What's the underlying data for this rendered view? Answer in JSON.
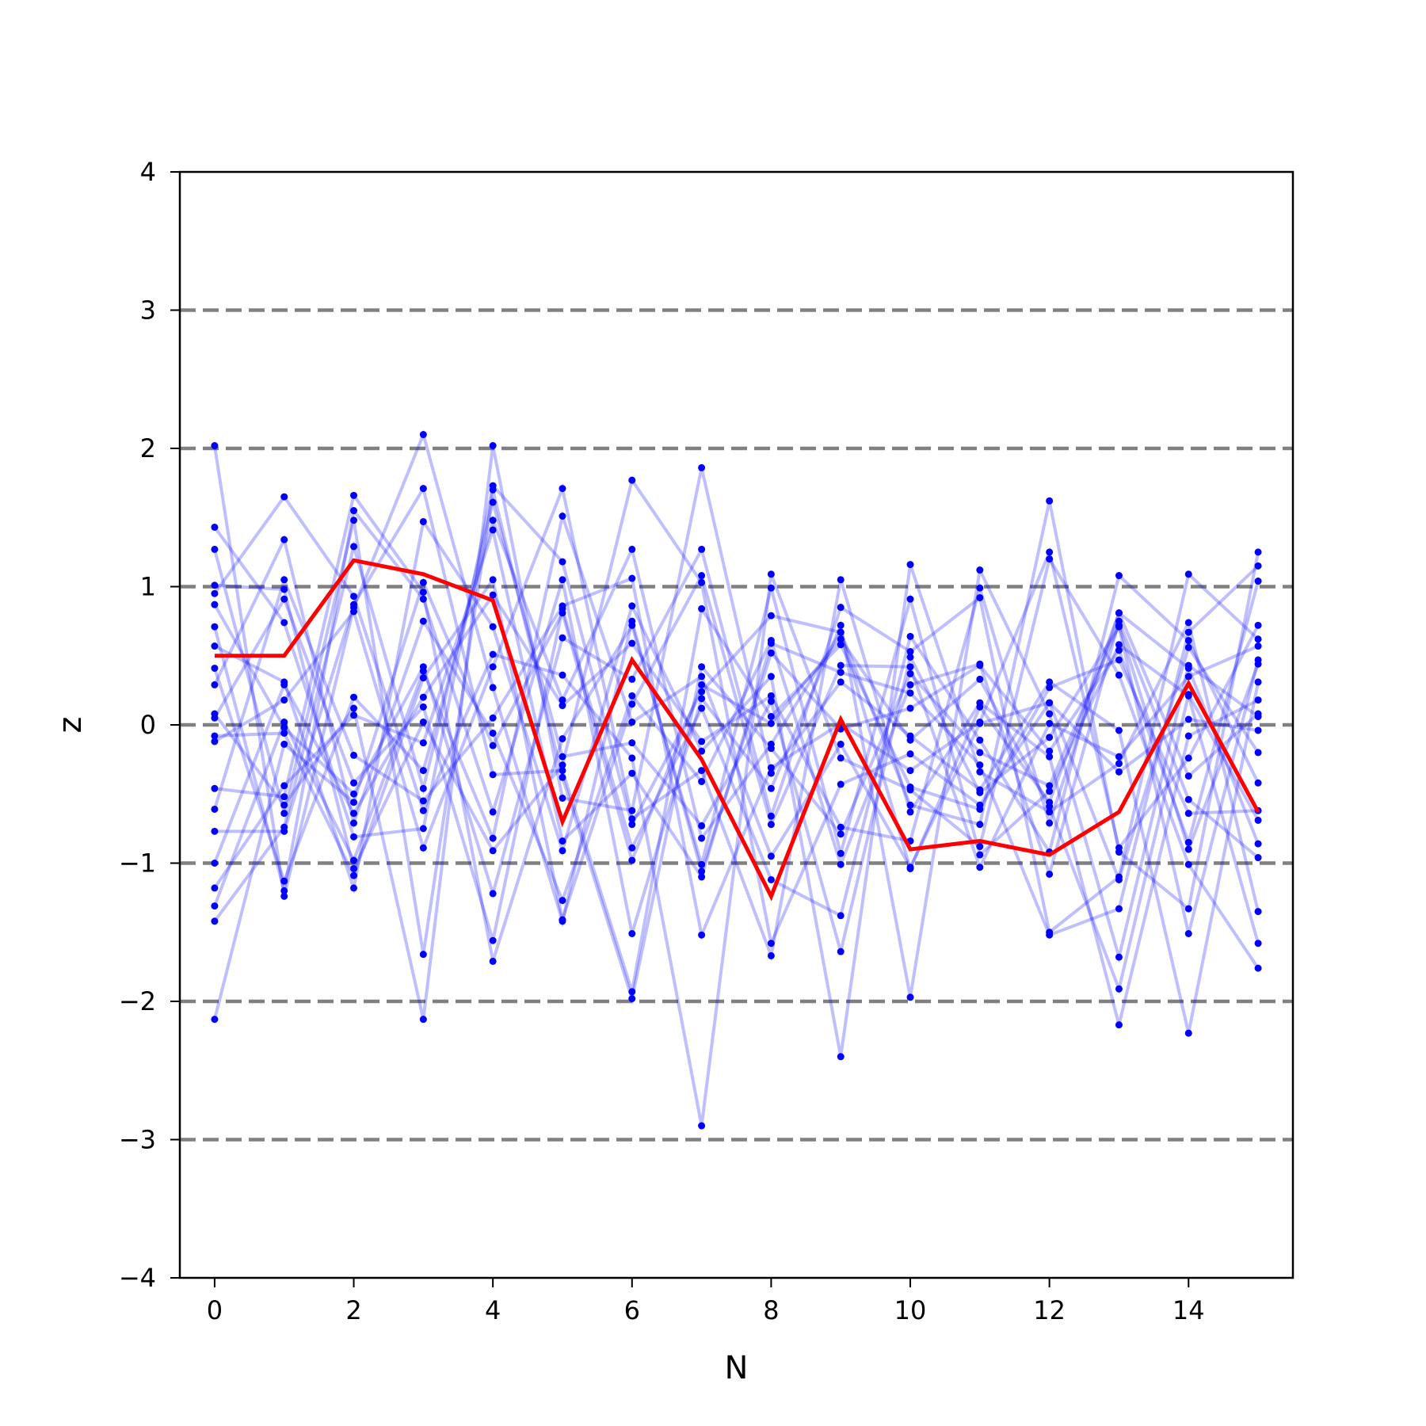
{
  "chart_data": {
    "type": "line",
    "xlabel": "N",
    "ylabel": "z",
    "xlim": [
      -0.5,
      15.5
    ],
    "ylim": [
      -4,
      4
    ],
    "x_ticks": [
      0,
      2,
      4,
      6,
      8,
      10,
      12,
      14
    ],
    "x_tick_labels": [
      "0",
      "2",
      "4",
      "6",
      "8",
      "10",
      "12",
      "14"
    ],
    "y_ticks": [
      -4,
      -3,
      -2,
      -1,
      0,
      1,
      2,
      3,
      4
    ],
    "y_tick_labels": [
      "−4",
      "−3",
      "−2",
      "−1",
      "0",
      "1",
      "2",
      "3",
      "4"
    ],
    "reference_lines": [
      -3,
      -2,
      -1,
      0,
      1,
      2,
      3
    ],
    "x": [
      0,
      1,
      2,
      3,
      4,
      5,
      6,
      7,
      8,
      9,
      10,
      11,
      12,
      13,
      14,
      15
    ],
    "highlight_series": {
      "values": [
        0.5,
        0.5,
        1.19,
        1.09,
        0.9,
        -0.7,
        0.47,
        -0.25,
        -1.24,
        0.04,
        -0.9,
        -0.84,
        -0.94,
        -0.63,
        0.3,
        -0.63
      ]
    },
    "background_series": [
      {
        "values": [
          2.02,
          -1.24,
          0.85,
          2.1,
          0.27,
          -1.42,
          0.75,
          -1.06,
          0.52,
          -0.03,
          0.12,
          0.43,
          -0.19,
          0.54,
          -0.85,
          1.04
        ]
      },
      {
        "values": [
          1.43,
          0.74,
          -0.81,
          -0.75,
          1.73,
          1.18,
          -0.72,
          0.24,
          0.79,
          0.67,
          -1.04,
          0.13,
          -0.56,
          0.81,
          0.41,
          -0.86
        ]
      },
      {
        "values": [
          1.27,
          -0.64,
          1.48,
          -1.66,
          1.7,
          -0.38,
          -1.98,
          0.42,
          -0.17,
          -0.79,
          0.37,
          -0.2,
          -0.44,
          0.72,
          -0.9,
          0.44
        ]
      },
      {
        "values": [
          1.01,
          0.98,
          -1.04,
          0.02,
          -0.91,
          -0.29,
          1.77,
          1.03,
          -1.58,
          -0.43,
          -0.21,
          -0.58,
          0.16,
          -1.12,
          0.56,
          -0.2
        ]
      },
      {
        "values": [
          0.95,
          1.65,
          0.93,
          -0.62,
          0.51,
          0.36,
          -0.24,
          -2.9,
          1.09,
          -0.24,
          -0.47,
          -0.88,
          1.2,
          0.36,
          -1.01,
          -1.76
        ]
      },
      {
        "values": [
          0.87,
          -0.02,
          -0.5,
          0.42,
          -1.22,
          0.63,
          0.33,
          1.27,
          -0.66,
          0.85,
          0.53,
          0.92,
          -1.5,
          -1.1,
          1.09,
          0.62
        ]
      },
      {
        "values": [
          0.71,
          -1.2,
          1.55,
          0.91,
          -0.63,
          1.05,
          -1.51,
          0.19,
          -0.46,
          0.72,
          -1.97,
          1.12,
          0.08,
          -1.68,
          0.43,
          0.06
        ]
      },
      {
        "values": [
          0.57,
          0.31,
          -1.18,
          1.47,
          0.71,
          -0.91,
          0.86,
          -0.19,
          0.35,
          -2.4,
          1.16,
          -0.34,
          -0.63,
          -0.28,
          0.74,
          -1.35
        ]
      },
      {
        "values": [
          0.41,
          -1.13,
          0.2,
          -0.33,
          1.48,
          0.18,
          1.27,
          -0.82,
          -0.14,
          0.67,
          -0.58,
          -0.72,
          1.62,
          -0.92,
          -1.33,
          1.25
        ]
      },
      {
        "values": [
          0.29,
          1.34,
          -0.71,
          0.75,
          -0.06,
          -1.27,
          0.21,
          -0.41,
          0.61,
          -1.01,
          0.29,
          0.44,
          -1.08,
          0.75,
          -0.54,
          -0.96
        ]
      },
      {
        "values": [
          0.08,
          -0.58,
          0.12,
          -2.13,
          2.02,
          -0.53,
          -0.62,
          1.86,
          -0.35,
          0.31,
          -0.08,
          -0.47,
          0.31,
          -0.04,
          -2.23,
          0.31
        ]
      },
      {
        "values": [
          0.05,
          0.91,
          -0.42,
          0.13,
          -1.56,
          0.84,
          -0.89,
          0.12,
          -1.12,
          -1.38,
          0.64,
          -0.11,
          -0.92,
          1.08,
          0.61,
          -0.42
        ]
      },
      {
        "values": [
          -0.08,
          -0.06,
          -1.09,
          0.34,
          1.05,
          -1.41,
          0.15,
          1.08,
          -0.72,
          0.43,
          0.42,
          -1.03,
          0.01,
          -0.23,
          0.35,
          0.57
        ]
      },
      {
        "values": [
          -0.12,
          0.18,
          0.82,
          -0.89,
          0.42,
          1.71,
          -0.68,
          -0.33,
          -1.67,
          1.05,
          -0.63,
          0.16,
          -0.23,
          -2.17,
          -0.08,
          0.18
        ]
      },
      {
        "values": [
          -0.46,
          -0.52,
          1.66,
          0.96,
          -1.71,
          -0.1,
          0.72,
          -1.01,
          0.99,
          -0.93,
          0.91,
          -0.94,
          -0.48,
          0.58,
          0.21,
          -1.58
        ]
      },
      {
        "values": [
          -0.61,
          1.05,
          -0.22,
          -0.55,
          0.05,
          0.86,
          1.06,
          -1.52,
          -0.31,
          0.01,
          -0.33,
          0.02,
          1.25,
          -0.89,
          -0.24,
          0.72
        ]
      },
      {
        "values": [
          -0.77,
          -0.77,
          0.87,
          1.71,
          -0.36,
          -0.33,
          -1.93,
          0.84,
          0.06,
          0.58,
          -0.45,
          -0.61,
          0.27,
          0.47,
          -0.64,
          -0.62
        ]
      },
      {
        "values": [
          -1.0,
          0.29,
          -0.64,
          0.2,
          0.94,
          0.14,
          0.59,
          -0.12,
          0.21,
          -0.74,
          -0.84,
          0.99,
          -0.71,
          0.81,
          -0.37,
          0.08
        ]
      },
      {
        "values": [
          -1.18,
          -0.44,
          0.07,
          -0.13,
          1.41,
          -0.84,
          -0.35,
          -1.1,
          0.59,
          0.38,
          0.23,
          -0.29,
          -1.52,
          -1.33,
          0.67,
          1.15
        ]
      },
      {
        "values": [
          -1.31,
          0.02,
          -0.98,
          0.39,
          -0.82,
          1.51,
          0.02,
          0.35,
          -0.95,
          -0.14,
          -1.03,
          0.01,
          0.16,
          -0.34,
          0.04,
          -0.04
        ]
      },
      {
        "values": [
          -1.42,
          -0.74,
          1.29,
          -0.46,
          1.61,
          -0.23,
          -0.13,
          -0.73,
          0.17,
          -1.64,
          0.49,
          -0.49,
          -0.09,
          0.71,
          -1.51,
          0.47
        ]
      },
      {
        "values": [
          -2.13,
          -0.14,
          -0.56,
          1.03,
          -0.15,
          0.81,
          -0.98,
          0.29,
          0.01,
          0.62,
          -0.11,
          0.33,
          -0.59,
          -1.91,
          0.22,
          -0.69
        ]
      }
    ]
  }
}
